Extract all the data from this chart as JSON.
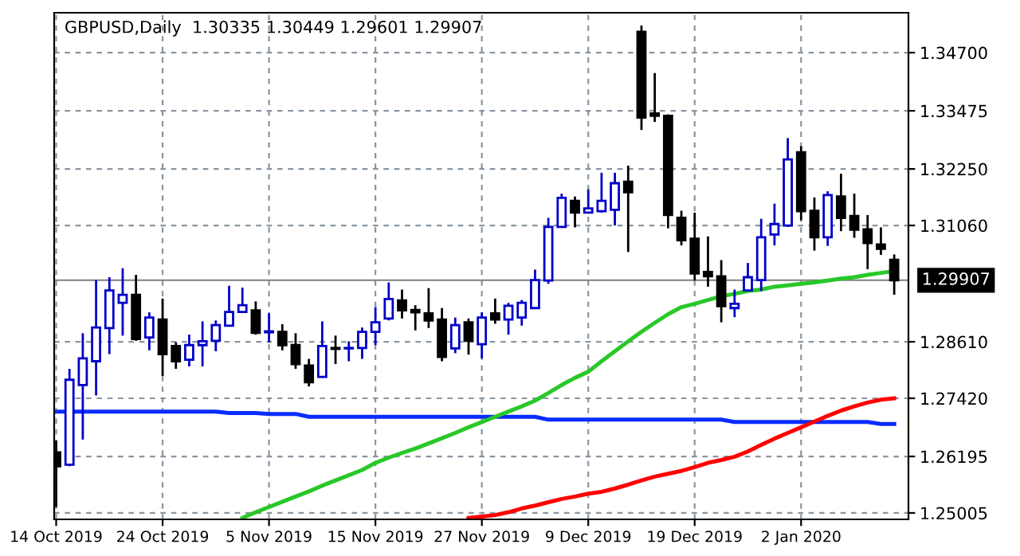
{
  "chart_data": {
    "type": "candlestick",
    "title": "GBPUSD,Daily  1.30335 1.30449 1.29601 1.29907",
    "categories": [
      "14 Oct 2019",
      null,
      null,
      null,
      null,
      null,
      null,
      null,
      "24 Oct 2019",
      null,
      null,
      null,
      null,
      null,
      null,
      null,
      "5 Nov 2019",
      null,
      null,
      null,
      null,
      null,
      null,
      null,
      "15 Nov 2019",
      null,
      null,
      null,
      null,
      null,
      null,
      null,
      "27 Nov 2019",
      null,
      null,
      null,
      null,
      null,
      null,
      null,
      "9 Dec 2019",
      null,
      null,
      null,
      null,
      null,
      null,
      null,
      "19 Dec 2019",
      null,
      null,
      null,
      null,
      null,
      null,
      null,
      "2 Jan 2020",
      null,
      null,
      null,
      null,
      null,
      null,
      null
    ],
    "ohlc": [
      [
        1.2628,
        1.2653,
        1.2513,
        1.2599
      ],
      [
        1.2602,
        1.2804,
        1.2599,
        1.2781
      ],
      [
        1.277,
        1.2879,
        1.2655,
        1.2826
      ],
      [
        1.282,
        1.2991,
        1.2748,
        1.2891
      ],
      [
        1.289,
        1.2997,
        1.2835,
        1.2969
      ],
      [
        1.2943,
        1.3016,
        1.2874,
        1.296
      ],
      [
        1.296,
        1.3002,
        1.2863,
        1.2867
      ],
      [
        1.287,
        1.2923,
        1.2843,
        1.2912
      ],
      [
        1.2908,
        1.2952,
        1.2789,
        1.2835
      ],
      [
        1.2852,
        1.286,
        1.2804,
        1.282
      ],
      [
        1.2823,
        1.2876,
        1.2809,
        1.2854
      ],
      [
        1.2854,
        1.2904,
        1.2809,
        1.2862
      ],
      [
        1.2863,
        1.2906,
        1.2841,
        1.2896
      ],
      [
        1.2895,
        1.2979,
        1.2893,
        1.2924
      ],
      [
        1.2924,
        1.2975,
        1.2923,
        1.2938
      ],
      [
        1.2927,
        1.2946,
        1.2876,
        1.288
      ],
      [
        1.2881,
        1.2921,
        1.286,
        1.2883
      ],
      [
        1.2882,
        1.2898,
        1.2843,
        1.2854
      ],
      [
        1.2854,
        1.2879,
        1.2804,
        1.2814
      ],
      [
        1.2811,
        1.2825,
        1.2767,
        1.2776
      ],
      [
        1.2787,
        1.2904,
        1.2785,
        1.2852
      ],
      [
        1.2848,
        1.2874,
        1.2814,
        1.2846
      ],
      [
        1.2847,
        1.2862,
        1.282,
        1.2848
      ],
      [
        1.2848,
        1.2891,
        1.2825,
        1.2882
      ],
      [
        1.2882,
        1.2934,
        1.2854,
        1.2902
      ],
      [
        1.291,
        1.2986,
        1.2906,
        1.2951
      ],
      [
        1.2948,
        1.2971,
        1.291,
        1.2927
      ],
      [
        1.2928,
        1.2938,
        1.2885,
        1.2923
      ],
      [
        1.2921,
        1.2974,
        1.289,
        1.2906
      ],
      [
        1.2908,
        1.2932,
        1.282,
        1.2829
      ],
      [
        1.2847,
        1.2912,
        1.2837,
        1.2896
      ],
      [
        1.2902,
        1.291,
        1.2834,
        1.2863
      ],
      [
        1.2856,
        1.2923,
        1.2826,
        1.2912
      ],
      [
        1.2921,
        1.2952,
        1.2899,
        1.2908
      ],
      [
        1.2908,
        1.2943,
        1.2876,
        1.2937
      ],
      [
        1.2912,
        1.2949,
        1.2895,
        1.2943
      ],
      [
        1.2932,
        1.3013,
        1.293,
        1.2991
      ],
      [
        1.299,
        1.3122,
        1.2983,
        1.3103
      ],
      [
        1.3103,
        1.3173,
        1.3102,
        1.3164
      ],
      [
        1.3158,
        1.3167,
        1.3102,
        1.3133
      ],
      [
        1.3133,
        1.3182,
        1.3131,
        1.3142
      ],
      [
        1.3136,
        1.3217,
        1.3133,
        1.3158
      ],
      [
        1.3139,
        1.3217,
        1.3106,
        1.3195
      ],
      [
        1.3198,
        1.3232,
        1.305,
        1.3176
      ],
      [
        1.3514,
        1.3527,
        1.3307,
        1.3333
      ],
      [
        1.3342,
        1.3427,
        1.3324,
        1.3337
      ],
      [
        1.3337,
        1.334,
        1.31,
        1.3128
      ],
      [
        1.3122,
        1.3137,
        1.3064,
        1.3075
      ],
      [
        1.3078,
        1.3133,
        1.299,
        1.3005
      ],
      [
        1.3008,
        1.3083,
        1.2977,
        1.2999
      ],
      [
        1.2999,
        1.3033,
        1.2902,
        1.2936
      ],
      [
        1.2932,
        1.2971,
        1.2913,
        1.2941
      ],
      [
        1.2969,
        1.3027,
        1.2968,
        1.2997
      ],
      [
        1.2991,
        1.312,
        1.2968,
        1.3081
      ],
      [
        1.3087,
        1.3152,
        1.3064,
        1.3109
      ],
      [
        1.3106,
        1.329,
        1.3103,
        1.3245
      ],
      [
        1.326,
        1.3273,
        1.3117,
        1.3136
      ],
      [
        1.3137,
        1.3165,
        1.3053,
        1.3081
      ],
      [
        1.3081,
        1.3178,
        1.3063,
        1.317
      ],
      [
        1.3167,
        1.3215,
        1.3094,
        1.3122
      ],
      [
        1.3126,
        1.3173,
        1.308,
        1.3097
      ],
      [
        1.3098,
        1.3128,
        1.3014,
        1.3069
      ],
      [
        1.3066,
        1.3102,
        1.3044,
        1.3057
      ],
      [
        1.30335,
        1.30449,
        1.29601,
        1.29907
      ]
    ],
    "colors": [
      "#000000",
      "#0000c8",
      "#0000c8",
      "#0000c8",
      "#0000c8",
      "#0000c8",
      "#000000",
      "#0000c8",
      "#000000",
      "#000000",
      "#0000c8",
      "#0000c8",
      "#0000c8",
      "#0000c8",
      "#0000c8",
      "#000000",
      "#0000c8",
      "#000000",
      "#000000",
      "#000000",
      "#0000c8",
      "#000000",
      "#0000c8",
      "#0000c8",
      "#0000c8",
      "#0000c8",
      "#000000",
      "#000000",
      "#000000",
      "#000000",
      "#0000c8",
      "#000000",
      "#0000c8",
      "#000000",
      "#0000c8",
      "#0000c8",
      "#0000c8",
      "#0000c8",
      "#0000c8",
      "#000000",
      "#0000c8",
      "#0000c8",
      "#0000c8",
      "#000000",
      "#000000",
      "#000000",
      "#000000",
      "#000000",
      "#000000",
      "#000000",
      "#000000",
      "#0000c8",
      "#0000c8",
      "#0000c8",
      "#0000c8",
      "#0000c8",
      "#000000",
      "#000000",
      "#0000c8",
      "#000000",
      "#000000",
      "#000000",
      "#000000",
      "#000000"
    ],
    "series": [
      {
        "type": "line",
        "color": "#0a2cff",
        "values": [
          1.2714,
          1.2714,
          1.2714,
          1.2714,
          1.2714,
          1.2714,
          1.2714,
          1.2714,
          1.2714,
          1.2714,
          1.2714,
          1.2714,
          1.2714,
          1.2711,
          1.2711,
          1.2711,
          1.2709,
          1.2709,
          1.2709,
          1.2703,
          1.2703,
          1.2703,
          1.2703,
          1.2703,
          1.2703,
          1.2703,
          1.2703,
          1.2703,
          1.2703,
          1.2703,
          1.2703,
          1.2703,
          1.2703,
          1.2703,
          1.2703,
          1.2703,
          1.2703,
          1.2697,
          1.2697,
          1.2697,
          1.2697,
          1.2697,
          1.2697,
          1.2697,
          1.2697,
          1.2697,
          1.2697,
          1.2697,
          1.2697,
          1.2697,
          1.2697,
          1.2692,
          1.2692,
          1.2692,
          1.2692,
          1.2692,
          1.2692,
          1.2692,
          1.2692,
          1.2692,
          1.2692,
          1.2692,
          1.2688,
          1.2688
        ]
      },
      {
        "type": "line",
        "color": "#28c828",
        "values": [
          null,
          null,
          null,
          null,
          null,
          null,
          null,
          null,
          null,
          null,
          null,
          null,
          null,
          null,
          1.249,
          1.2502,
          1.2513,
          1.2524,
          1.2535,
          1.2546,
          1.2558,
          1.2569,
          1.258,
          1.2591,
          1.2606,
          1.2617,
          1.2627,
          1.2636,
          1.2647,
          1.2658,
          1.2669,
          1.2681,
          1.2692,
          1.2703,
          1.2714,
          1.2725,
          1.2737,
          1.2753,
          1.277,
          1.2785,
          1.2798,
          1.282,
          1.2841,
          1.2862,
          1.2882,
          1.2901,
          1.2919,
          1.2934,
          1.2941,
          1.2949,
          1.2957,
          1.2962,
          1.2968,
          1.2971,
          1.2977,
          1.298,
          1.2983,
          1.2986,
          1.299,
          1.2994,
          1.2997,
          1.3002,
          1.3006,
          1.301
        ]
      },
      {
        "type": "line",
        "color": "#ff0000",
        "values": [
          null,
          null,
          null,
          null,
          null,
          null,
          null,
          null,
          null,
          null,
          null,
          null,
          null,
          null,
          null,
          null,
          null,
          null,
          null,
          null,
          null,
          null,
          null,
          null,
          null,
          null,
          null,
          null,
          null,
          null,
          null,
          1.249,
          1.2493,
          1.2496,
          1.2502,
          1.251,
          1.2516,
          1.2523,
          1.253,
          1.2535,
          1.2541,
          1.2545,
          1.2552,
          1.256,
          1.2569,
          1.2577,
          1.2583,
          1.2589,
          1.2597,
          1.2606,
          1.2612,
          1.2619,
          1.263,
          1.2644,
          1.2657,
          1.2669,
          1.2681,
          1.2693,
          1.2705,
          1.2716,
          1.2725,
          1.2733,
          1.2739,
          1.2742
        ]
      }
    ],
    "ylim": [
      1.2487,
      1.3554
    ],
    "yticks": [
      {
        "value": 1.25005,
        "label": "1.25005"
      },
      {
        "value": 1.26195,
        "label": "1.26195"
      },
      {
        "value": 1.2742,
        "label": "1.27420"
      },
      {
        "value": 1.2861,
        "label": "1.28610"
      },
      {
        "value": 1.3106,
        "label": "1.31060"
      },
      {
        "value": 1.3225,
        "label": "1.32250"
      },
      {
        "value": 1.33475,
        "label": "1.33475"
      },
      {
        "value": 1.347,
        "label": "1.34700"
      }
    ],
    "ref_lines": [
      {
        "axis": "y",
        "value": 1.29907,
        "label": "1.29907",
        "color": "#808080"
      }
    ],
    "grid": true,
    "line_style": "solid"
  }
}
